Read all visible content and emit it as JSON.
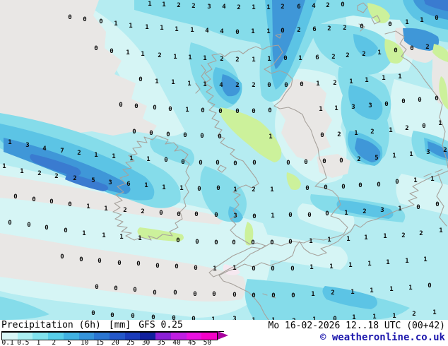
{
  "legend": {
    "title": "Precipitation (6h)",
    "unit": "[mm]",
    "model": "GFS 0.25",
    "scale": {
      "ticks": [
        "0.1",
        "0.5",
        "1",
        "2",
        "5",
        "10",
        "15",
        "20",
        "25",
        "30",
        "35",
        "40",
        "45",
        "50"
      ],
      "colors": [
        "#d9f7f7",
        "#aceff2",
        "#81e3ee",
        "#58cfe9",
        "#41b2e2",
        "#3594da",
        "#2b76d2",
        "#2458ca",
        "#1b3cbb",
        "#12209e",
        "#8c20d6",
        "#c01ee2",
        "#ea12e0",
        "#f402c8"
      ],
      "arrow_color": "#aa02a0"
    }
  },
  "footer": {
    "datetime": "Mo 16-02-2026 12..18 UTC (00+42)",
    "copyright": "© weatheronline.co.uk",
    "copyright_color": "#1d18ad"
  },
  "map": {
    "value_unit": "mm",
    "grid_values": [
      [
        212,
        8,
        "1"
      ],
      [
        232,
        9,
        "1"
      ],
      [
        253,
        10,
        "2"
      ],
      [
        274,
        11,
        "2"
      ],
      [
        296,
        12,
        "3"
      ],
      [
        317,
        12,
        "4"
      ],
      [
        338,
        13,
        "2"
      ],
      [
        359,
        13,
        "1"
      ],
      [
        380,
        13,
        "1"
      ],
      [
        400,
        12,
        "2"
      ],
      [
        423,
        12,
        "6"
      ],
      [
        444,
        11,
        "4"
      ],
      [
        464,
        10,
        "2"
      ],
      [
        485,
        9,
        "0"
      ],
      [
        99,
        27,
        "0"
      ],
      [
        120,
        30,
        "0"
      ],
      [
        143,
        33,
        "0"
      ],
      [
        164,
        36,
        "1"
      ],
      [
        185,
        39,
        "1"
      ],
      [
        208,
        41,
        "1"
      ],
      [
        229,
        42,
        "1"
      ],
      [
        250,
        44,
        "1"
      ],
      [
        272,
        45,
        "1"
      ],
      [
        293,
        46,
        "4"
      ],
      [
        314,
        47,
        "4"
      ],
      [
        336,
        48,
        "0"
      ],
      [
        358,
        47,
        "1"
      ],
      [
        380,
        47,
        "1"
      ],
      [
        400,
        46,
        "0"
      ],
      [
        423,
        45,
        "2"
      ],
      [
        445,
        44,
        "6"
      ],
      [
        466,
        43,
        "2"
      ],
      [
        488,
        42,
        "2"
      ],
      [
        512,
        40,
        "0"
      ],
      [
        552,
        37,
        "0"
      ],
      [
        576,
        34,
        "1"
      ],
      [
        597,
        31,
        "1"
      ],
      [
        618,
        28,
        "0"
      ],
      [
        136,
        71,
        "0"
      ],
      [
        158,
        75,
        "0"
      ],
      [
        181,
        77,
        "1"
      ],
      [
        202,
        79,
        "1"
      ],
      [
        226,
        81,
        "2"
      ],
      [
        248,
        83,
        "1"
      ],
      [
        269,
        84,
        "1"
      ],
      [
        290,
        85,
        "1"
      ],
      [
        314,
        86,
        "2"
      ],
      [
        336,
        87,
        "2"
      ],
      [
        359,
        87,
        "1"
      ],
      [
        381,
        86,
        "1"
      ],
      [
        404,
        85,
        "0"
      ],
      [
        425,
        85,
        "1"
      ],
      [
        449,
        84,
        "6"
      ],
      [
        472,
        83,
        "2"
      ],
      [
        492,
        81,
        "2"
      ],
      [
        515,
        79,
        "2"
      ],
      [
        537,
        77,
        "1"
      ],
      [
        560,
        74,
        "0"
      ],
      [
        583,
        71,
        "0"
      ],
      [
        605,
        69,
        "2"
      ],
      [
        199,
        115,
        "0"
      ],
      [
        222,
        118,
        "1"
      ],
      [
        245,
        119,
        "1"
      ],
      [
        268,
        121,
        "1"
      ],
      [
        290,
        122,
        "1"
      ],
      [
        313,
        123,
        "4"
      ],
      [
        336,
        123,
        "2"
      ],
      [
        359,
        123,
        "2"
      ],
      [
        381,
        123,
        "0"
      ],
      [
        405,
        123,
        "0"
      ],
      [
        427,
        122,
        "0"
      ],
      [
        450,
        121,
        "1"
      ],
      [
        474,
        120,
        "2"
      ],
      [
        497,
        118,
        "1"
      ],
      [
        519,
        116,
        "1"
      ],
      [
        543,
        113,
        "1"
      ],
      [
        566,
        111,
        "1"
      ],
      [
        171,
        151,
        "0"
      ],
      [
        193,
        153,
        "0"
      ],
      [
        219,
        155,
        "0"
      ],
      [
        241,
        157,
        "0"
      ],
      [
        265,
        158,
        "1"
      ],
      [
        287,
        159,
        "0"
      ],
      [
        312,
        160,
        "0"
      ],
      [
        336,
        160,
        "0"
      ],
      [
        359,
        160,
        "0"
      ],
      [
        382,
        159,
        "0"
      ],
      [
        454,
        157,
        "1"
      ],
      [
        476,
        156,
        "1"
      ],
      [
        500,
        154,
        "3"
      ],
      [
        524,
        152,
        "3"
      ],
      [
        547,
        150,
        "0"
      ],
      [
        571,
        146,
        "0"
      ],
      [
        594,
        144,
        "0"
      ],
      [
        618,
        142,
        "0"
      ],
      [
        190,
        189,
        "0"
      ],
      [
        214,
        191,
        "0"
      ],
      [
        238,
        193,
        "0"
      ],
      [
        262,
        194,
        "0"
      ],
      [
        286,
        195,
        "0"
      ],
      [
        311,
        196,
        "0"
      ],
      [
        383,
        196,
        "1"
      ],
      [
        456,
        194,
        "0"
      ],
      [
        480,
        193,
        "2"
      ],
      [
        504,
        191,
        "1"
      ],
      [
        527,
        189,
        "2"
      ],
      [
        553,
        187,
        "1"
      ],
      [
        576,
        184,
        "2"
      ],
      [
        600,
        181,
        "0"
      ],
      [
        623,
        177,
        "1"
      ],
      [
        14,
        204,
        "1"
      ],
      [
        39,
        208,
        "3"
      ],
      [
        63,
        213,
        "4"
      ],
      [
        88,
        216,
        "7"
      ],
      [
        112,
        219,
        "2"
      ],
      [
        136,
        222,
        "1"
      ],
      [
        161,
        224,
        "1"
      ],
      [
        186,
        227,
        "1"
      ],
      [
        210,
        228,
        "1"
      ],
      [
        235,
        229,
        "0"
      ],
      [
        259,
        232,
        "0"
      ],
      [
        284,
        233,
        "0"
      ],
      [
        308,
        233,
        "0"
      ],
      [
        333,
        234,
        "0"
      ],
      [
        360,
        233,
        "0"
      ],
      [
        408,
        233,
        "0"
      ],
      [
        433,
        232,
        "0"
      ],
      [
        459,
        231,
        "0"
      ],
      [
        483,
        230,
        "0"
      ],
      [
        508,
        228,
        "2"
      ],
      [
        533,
        226,
        "5"
      ],
      [
        558,
        223,
        "1"
      ],
      [
        582,
        221,
        "1"
      ],
      [
        606,
        218,
        "3"
      ],
      [
        630,
        215,
        "2"
      ],
      [
        6,
        238,
        "1"
      ],
      [
        31,
        245,
        "1"
      ],
      [
        56,
        248,
        "2"
      ],
      [
        80,
        252,
        "2"
      ],
      [
        106,
        255,
        "2"
      ],
      [
        132,
        258,
        "5"
      ],
      [
        156,
        261,
        "3"
      ],
      [
        182,
        263,
        "6"
      ],
      [
        207,
        265,
        "1"
      ],
      [
        232,
        268,
        "1"
      ],
      [
        257,
        269,
        "1"
      ],
      [
        282,
        270,
        "0"
      ],
      [
        309,
        269,
        "0"
      ],
      [
        333,
        271,
        "1"
      ],
      [
        359,
        271,
        "2"
      ],
      [
        385,
        271,
        "1"
      ],
      [
        435,
        269,
        "0"
      ],
      [
        461,
        268,
        "0"
      ],
      [
        486,
        267,
        "0"
      ],
      [
        510,
        265,
        "0"
      ],
      [
        536,
        264,
        "0"
      ],
      [
        562,
        260,
        "0"
      ],
      [
        588,
        258,
        "1"
      ],
      [
        612,
        256,
        "1"
      ],
      [
        22,
        281,
        "0"
      ],
      [
        48,
        285,
        "0"
      ],
      [
        73,
        288,
        "0"
      ],
      [
        99,
        292,
        "0"
      ],
      [
        125,
        295,
        "1"
      ],
      [
        150,
        298,
        "1"
      ],
      [
        177,
        300,
        "2"
      ],
      [
        202,
        302,
        "2"
      ],
      [
        228,
        304,
        "0"
      ],
      [
        253,
        306,
        "0"
      ],
      [
        278,
        306,
        "0"
      ],
      [
        306,
        307,
        "0"
      ],
      [
        333,
        308,
        "3"
      ],
      [
        360,
        309,
        "0"
      ],
      [
        386,
        308,
        "1"
      ],
      [
        411,
        307,
        "0"
      ],
      [
        438,
        307,
        "0"
      ],
      [
        463,
        305,
        "0"
      ],
      [
        490,
        304,
        "1"
      ],
      [
        516,
        302,
        "2"
      ],
      [
        541,
        300,
        "3"
      ],
      [
        566,
        298,
        "1"
      ],
      [
        592,
        296,
        "0"
      ],
      [
        619,
        292,
        "0"
      ],
      [
        14,
        318,
        "0"
      ],
      [
        41,
        321,
        "0"
      ],
      [
        66,
        325,
        "0"
      ],
      [
        93,
        329,
        "0"
      ],
      [
        119,
        333,
        "1"
      ],
      [
        147,
        336,
        "1"
      ],
      [
        172,
        338,
        "1"
      ],
      [
        198,
        340,
        "1"
      ],
      [
        252,
        343,
        "0"
      ],
      [
        279,
        345,
        "0"
      ],
      [
        306,
        346,
        "0"
      ],
      [
        331,
        346,
        "0"
      ],
      [
        358,
        346,
        "0"
      ],
      [
        385,
        346,
        "0"
      ],
      [
        411,
        345,
        "0"
      ],
      [
        440,
        344,
        "1"
      ],
      [
        466,
        342,
        "1"
      ],
      [
        493,
        341,
        "1"
      ],
      [
        518,
        339,
        "1"
      ],
      [
        545,
        337,
        "1"
      ],
      [
        571,
        336,
        "2"
      ],
      [
        596,
        333,
        "2"
      ],
      [
        624,
        329,
        "1"
      ],
      [
        88,
        366,
        "0"
      ],
      [
        115,
        370,
        "0"
      ],
      [
        141,
        372,
        "0"
      ],
      [
        169,
        375,
        "0"
      ],
      [
        196,
        376,
        "0"
      ],
      [
        223,
        379,
        "0"
      ],
      [
        250,
        380,
        "0"
      ],
      [
        277,
        382,
        "0"
      ],
      [
        304,
        383,
        "1"
      ],
      [
        332,
        382,
        "1"
      ],
      [
        359,
        383,
        "0"
      ],
      [
        386,
        383,
        "0"
      ],
      [
        414,
        383,
        "0"
      ],
      [
        441,
        381,
        "1"
      ],
      [
        469,
        380,
        "1"
      ],
      [
        496,
        378,
        "1"
      ],
      [
        523,
        376,
        "1"
      ],
      [
        549,
        374,
        "1"
      ],
      [
        576,
        372,
        "1"
      ],
      [
        602,
        370,
        "1"
      ],
      [
        137,
        409,
        "0"
      ],
      [
        164,
        411,
        "0"
      ],
      [
        191,
        413,
        "0"
      ],
      [
        219,
        417,
        "0"
      ],
      [
        248,
        417,
        "0"
      ],
      [
        276,
        419,
        "0"
      ],
      [
        303,
        419,
        "0"
      ],
      [
        332,
        420,
        "0"
      ],
      [
        359,
        421,
        "0"
      ],
      [
        387,
        421,
        "0"
      ],
      [
        415,
        421,
        "0"
      ],
      [
        443,
        419,
        "1"
      ],
      [
        471,
        417,
        "2"
      ],
      [
        499,
        416,
        "1"
      ],
      [
        526,
        414,
        "1"
      ],
      [
        554,
        412,
        "1"
      ],
      [
        581,
        410,
        "1"
      ],
      [
        608,
        407,
        "0"
      ],
      [
        132,
        446,
        "0"
      ],
      [
        159,
        449,
        "0"
      ],
      [
        188,
        450,
        "0"
      ],
      [
        217,
        452,
        "0"
      ],
      [
        246,
        453,
        "0"
      ],
      [
        274,
        454,
        "0"
      ],
      [
        302,
        455,
        "1"
      ],
      [
        332,
        454,
        "3"
      ],
      [
        359,
        456,
        "1"
      ],
      [
        387,
        456,
        "1"
      ],
      [
        416,
        457,
        "2"
      ],
      [
        445,
        455,
        "1"
      ],
      [
        474,
        454,
        "0"
      ],
      [
        501,
        452,
        "1"
      ],
      [
        530,
        451,
        "1"
      ],
      [
        558,
        450,
        "1"
      ],
      [
        586,
        447,
        "2"
      ],
      [
        615,
        445,
        "1"
      ]
    ]
  }
}
